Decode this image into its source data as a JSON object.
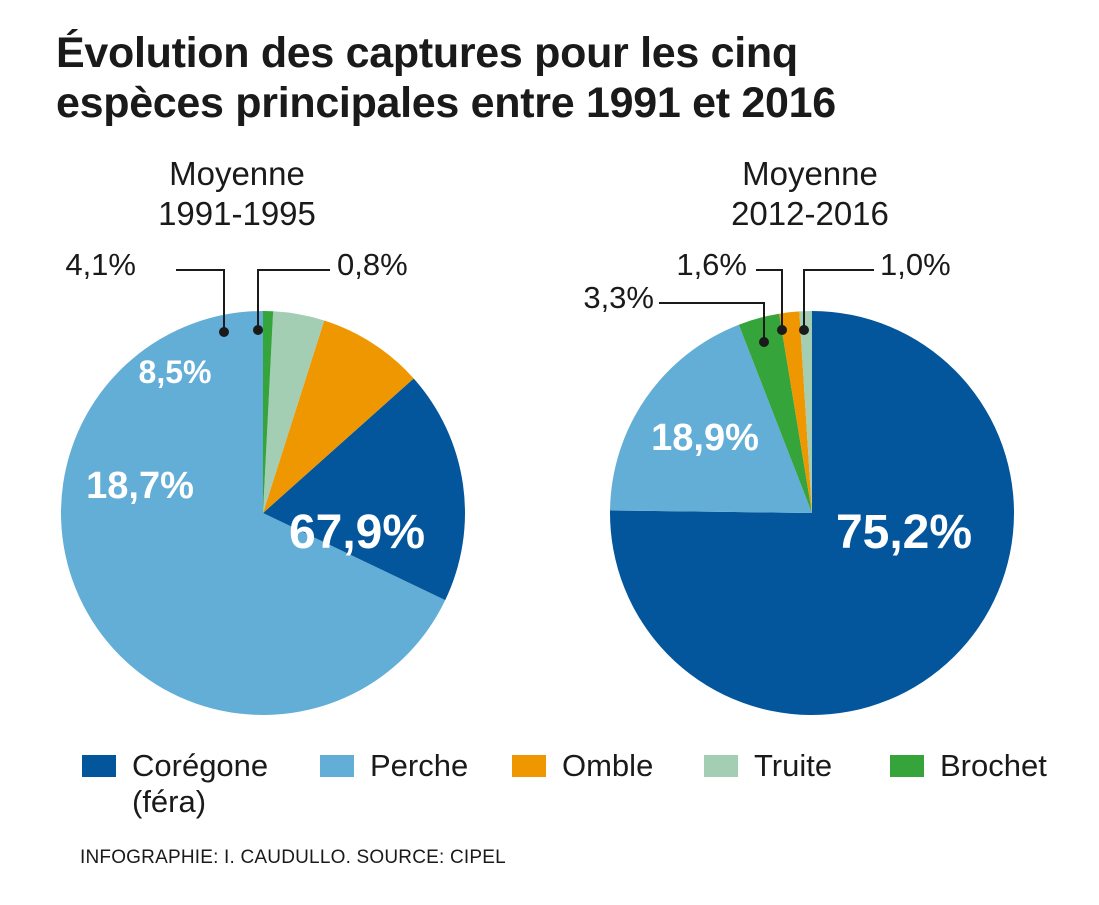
{
  "title": {
    "line1": "Évolution des captures pour les cinq",
    "line2": "espèces principales entre 1991 et 2016"
  },
  "colors": {
    "coregone": "#03569c",
    "perche": "#62aed6",
    "omble": "#ef9700",
    "truite": "#a3ceb4",
    "brochet": "#35a43a"
  },
  "chart_data": [
    {
      "type": "pie",
      "subtitle_line1": "Moyenne",
      "subtitle_line2": "1991-1995",
      "slices": [
        {
          "name": "Perche",
          "key": "perche",
          "value": 67.9,
          "label": "67,9%"
        },
        {
          "name": "Corégone (féra)",
          "key": "coregone",
          "value": 18.7,
          "label": "18,7%"
        },
        {
          "name": "Omble",
          "key": "omble",
          "value": 8.5,
          "label": "8,5%"
        },
        {
          "name": "Truite",
          "key": "truite",
          "value": 4.1,
          "label": "4,1%"
        },
        {
          "name": "Brochet",
          "key": "brochet",
          "value": 0.8,
          "label": "0,8%"
        }
      ]
    },
    {
      "type": "pie",
      "subtitle_line1": "Moyenne",
      "subtitle_line2": "2012-2016",
      "slices": [
        {
          "name": "Corégone (féra)",
          "key": "coregone",
          "value": 75.2,
          "label": "75,2%"
        },
        {
          "name": "Perche",
          "key": "perche",
          "value": 18.9,
          "label": "18,9%"
        },
        {
          "name": "Brochet",
          "key": "brochet",
          "value": 3.3,
          "label": "3,3%"
        },
        {
          "name": "Omble",
          "key": "omble",
          "value": 1.6,
          "label": "1,6%"
        },
        {
          "name": "Truite",
          "key": "truite",
          "value": 1.0,
          "label": "1,0%"
        }
      ]
    }
  ],
  "legend": [
    {
      "key": "coregone",
      "line1": "Corégone",
      "line2": "(féra)"
    },
    {
      "key": "perche",
      "line1": "Perche"
    },
    {
      "key": "omble",
      "line1": "Omble"
    },
    {
      "key": "truite",
      "line1": "Truite"
    },
    {
      "key": "brochet",
      "line1": "Brochet"
    }
  ],
  "source": "INFOGRAPHIE: I. CAUDULLO. SOURCE: CIPEL"
}
